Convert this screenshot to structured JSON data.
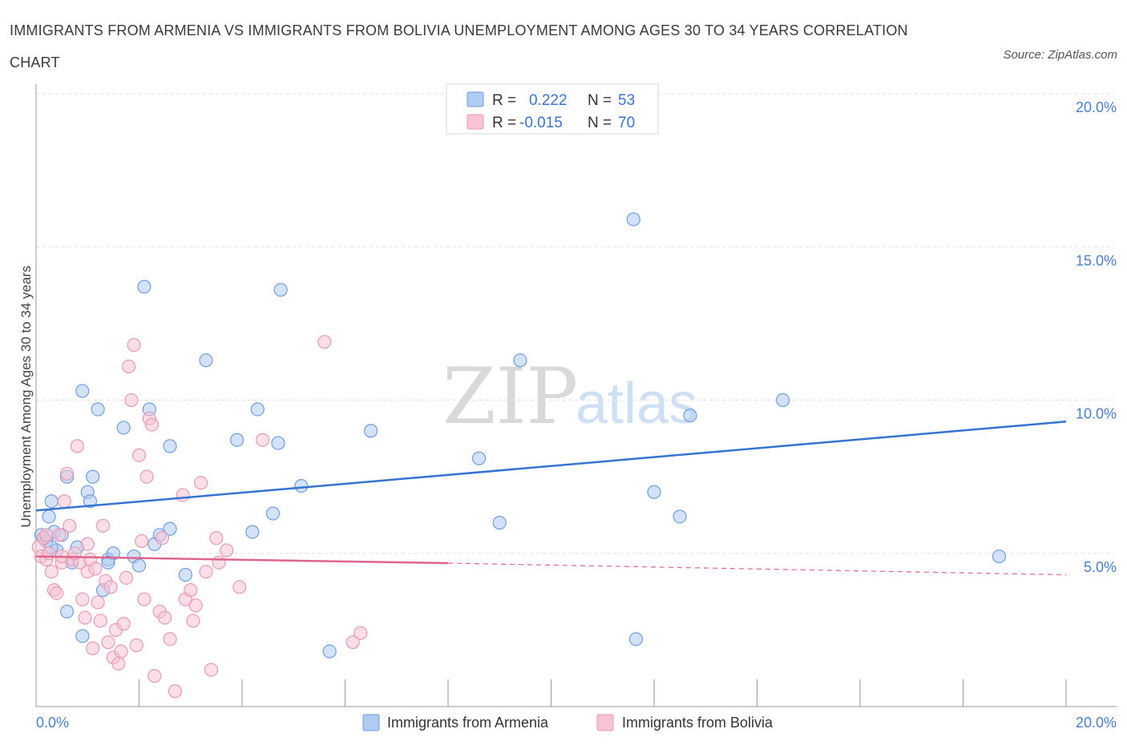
{
  "title": "IMMIGRANTS FROM ARMENIA VS IMMIGRANTS FROM BOLIVIA UNEMPLOYMENT AMONG AGES 30 TO 34 YEARS CORRELATION CHART",
  "source": "Source: ZipAtlas.com",
  "watermark": {
    "zip": "ZIP",
    "atlas": "atlas"
  },
  "legend": {
    "rows": [
      {
        "r_label": "R =",
        "r_value": "0.222",
        "n_label": "N =",
        "n_value": "53",
        "color": "#aecbf2",
        "stroke": "#6f9ee0"
      },
      {
        "r_label": "R =",
        "r_value": "-0.015",
        "n_label": "N =",
        "n_value": "70",
        "color": "#f8c3d4",
        "stroke": "#e89ab4"
      }
    ]
  },
  "bottom_legend": {
    "armenia": "Immigrants from Armenia",
    "bolivia": "Immigrants from Bolivia"
  },
  "chart_data": {
    "type": "scatter",
    "title": "IMMIGRANTS FROM ARMENIA VS IMMIGRANTS FROM BOLIVIA UNEMPLOYMENT AMONG AGES 30 TO 34 YEARS CORRELATION CHART",
    "xlabel": "",
    "ylabel": "Unemployment Among Ages 30 to 34 years",
    "xlim": [
      0,
      20
    ],
    "ylim": [
      0,
      20
    ],
    "x_tick_labels": [
      "0.0%",
      "20.0%"
    ],
    "y_ticks": [
      5,
      10,
      15,
      20
    ],
    "y_tick_labels": [
      "5.0%",
      "10.0%",
      "15.0%",
      "20.0%"
    ],
    "grid": true,
    "series": [
      {
        "name": "Immigrants from Armenia",
        "color": "#aecbf2",
        "stroke": "#6f9ee0",
        "trend": {
          "x": [
            0,
            20
          ],
          "y": [
            6.4,
            9.3
          ],
          "color": "#3573d0"
        },
        "points": [
          [
            0.1,
            5.6
          ],
          [
            0.15,
            5.5
          ],
          [
            0.2,
            5.4
          ],
          [
            0.25,
            6.2
          ],
          [
            0.3,
            6.7
          ],
          [
            0.35,
            5.7
          ],
          [
            0.4,
            5.1
          ],
          [
            0.5,
            5.6
          ],
          [
            0.6,
            7.5
          ],
          [
            0.7,
            4.7
          ],
          [
            0.8,
            5.2
          ],
          [
            0.9,
            10.3
          ],
          [
            1.0,
            7.0
          ],
          [
            1.05,
            6.7
          ],
          [
            1.1,
            7.5
          ],
          [
            1.2,
            9.7
          ],
          [
            1.3,
            3.8
          ],
          [
            1.4,
            4.8
          ],
          [
            1.5,
            5.0
          ],
          [
            1.7,
            9.1
          ],
          [
            1.9,
            4.9
          ],
          [
            2.0,
            4.6
          ],
          [
            2.1,
            13.7
          ],
          [
            2.2,
            9.7
          ],
          [
            2.3,
            5.3
          ],
          [
            2.4,
            5.6
          ],
          [
            2.6,
            8.5
          ],
          [
            2.6,
            5.8
          ],
          [
            2.9,
            4.3
          ],
          [
            3.3,
            11.3
          ],
          [
            3.9,
            8.7
          ],
          [
            4.2,
            5.7
          ],
          [
            4.3,
            9.7
          ],
          [
            4.6,
            6.3
          ],
          [
            4.7,
            8.6
          ],
          [
            4.75,
            13.6
          ],
          [
            5.15,
            7.2
          ],
          [
            5.7,
            1.8
          ],
          [
            6.5,
            9.0
          ],
          [
            8.6,
            8.1
          ],
          [
            9.0,
            6.0
          ],
          [
            9.4,
            11.3
          ],
          [
            11.6,
            15.9
          ],
          [
            12.0,
            7.0
          ],
          [
            12.7,
            9.5
          ],
          [
            12.5,
            6.2
          ],
          [
            14.5,
            10.0
          ],
          [
            11.65,
            2.2
          ],
          [
            18.7,
            4.9
          ],
          [
            0.6,
            3.1
          ],
          [
            0.9,
            2.3
          ],
          [
            1.4,
            4.7
          ],
          [
            0.3,
            5.2
          ]
        ]
      },
      {
        "name": "Immigrants from Bolivia",
        "color": "#f8c3d4",
        "stroke": "#e89ab4",
        "trend": {
          "x": [
            0,
            8
          ],
          "y": [
            4.9,
            4.68
          ],
          "dashed_x": [
            8,
            20
          ],
          "dashed_y": [
            4.68,
            4.3
          ],
          "color": "#e0648c"
        },
        "points": [
          [
            0.05,
            5.2
          ],
          [
            0.1,
            4.9
          ],
          [
            0.15,
            5.5
          ],
          [
            0.2,
            4.8
          ],
          [
            0.25,
            5.0
          ],
          [
            0.3,
            4.4
          ],
          [
            0.35,
            3.8
          ],
          [
            0.4,
            3.7
          ],
          [
            0.45,
            5.6
          ],
          [
            0.5,
            4.7
          ],
          [
            0.55,
            6.7
          ],
          [
            0.6,
            7.6
          ],
          [
            0.65,
            5.9
          ],
          [
            0.7,
            4.8
          ],
          [
            0.8,
            8.5
          ],
          [
            0.85,
            4.7
          ],
          [
            0.9,
            3.5
          ],
          [
            0.95,
            2.9
          ],
          [
            1.0,
            4.4
          ],
          [
            1.05,
            4.8
          ],
          [
            1.1,
            1.9
          ],
          [
            1.15,
            4.5
          ],
          [
            1.2,
            3.4
          ],
          [
            1.25,
            2.8
          ],
          [
            1.3,
            5.9
          ],
          [
            1.35,
            4.1
          ],
          [
            1.4,
            2.1
          ],
          [
            1.45,
            3.9
          ],
          [
            1.5,
            1.6
          ],
          [
            1.55,
            2.5
          ],
          [
            1.6,
            1.4
          ],
          [
            1.65,
            1.8
          ],
          [
            1.7,
            2.7
          ],
          [
            1.75,
            4.2
          ],
          [
            1.8,
            11.1
          ],
          [
            1.85,
            10.0
          ],
          [
            1.9,
            11.8
          ],
          [
            1.95,
            2.0
          ],
          [
            2.0,
            8.2
          ],
          [
            2.05,
            5.4
          ],
          [
            2.1,
            3.5
          ],
          [
            2.15,
            7.5
          ],
          [
            2.2,
            9.4
          ],
          [
            2.25,
            9.2
          ],
          [
            2.3,
            1.0
          ],
          [
            2.4,
            3.1
          ],
          [
            2.45,
            5.5
          ],
          [
            2.5,
            2.9
          ],
          [
            2.6,
            2.2
          ],
          [
            2.7,
            0.5
          ],
          [
            2.85,
            6.9
          ],
          [
            2.9,
            3.5
          ],
          [
            3.0,
            3.8
          ],
          [
            3.05,
            2.8
          ],
          [
            3.1,
            3.3
          ],
          [
            3.2,
            7.3
          ],
          [
            3.3,
            4.4
          ],
          [
            3.4,
            1.2
          ],
          [
            3.5,
            5.5
          ],
          [
            3.55,
            4.7
          ],
          [
            3.7,
            5.1
          ],
          [
            3.95,
            3.9
          ],
          [
            4.4,
            8.7
          ],
          [
            5.6,
            11.9
          ],
          [
            6.15,
            2.1
          ],
          [
            6.3,
            2.4
          ],
          [
            0.75,
            5.0
          ],
          [
            0.2,
            5.6
          ],
          [
            1.0,
            5.3
          ],
          [
            0.5,
            4.9
          ]
        ]
      }
    ]
  }
}
